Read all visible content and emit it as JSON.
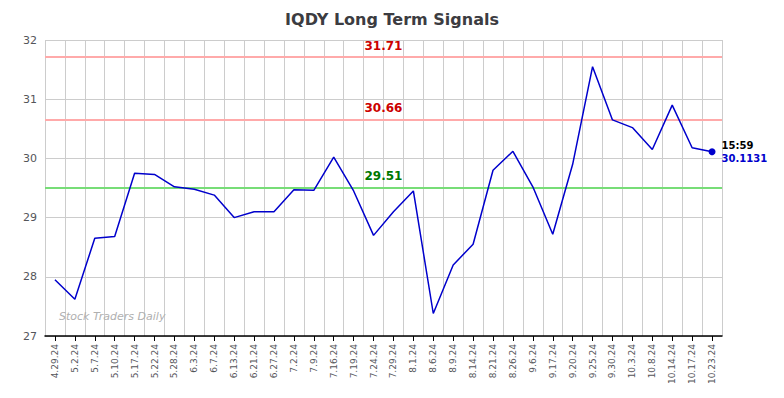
{
  "chart_data": {
    "type": "line",
    "title": "IQDY Long Term Signals",
    "categories": [
      "4.29.24",
      "5.2.24",
      "5.7.24",
      "5.10.24",
      "5.17.24",
      "5.22.24",
      "5.28.24",
      "6.3.24",
      "6.7.24",
      "6.13.24",
      "6.21.24",
      "6.27.24",
      "7.2.24",
      "7.9.24",
      "7.16.24",
      "7.19.24",
      "7.24.24",
      "7.29.24",
      "8.1.24",
      "8.6.24",
      "8.9.24",
      "8.14.24",
      "8.21.24",
      "8.26.24",
      "9.6.24",
      "9.17.24",
      "9.20.24",
      "9.25.24",
      "9.30.24",
      "10.3.24",
      "10.8.24",
      "10.14.24",
      "10.17.24",
      "10.23.24"
    ],
    "values": [
      27.95,
      27.62,
      28.65,
      28.68,
      29.75,
      29.73,
      29.52,
      29.48,
      29.38,
      29.0,
      29.1,
      29.1,
      29.47,
      29.46,
      30.02,
      29.45,
      28.7,
      29.1,
      29.45,
      27.38,
      28.2,
      28.55,
      29.8,
      30.12,
      29.52,
      28.72,
      29.9,
      31.55,
      30.65,
      30.52,
      30.15,
      30.9,
      30.18,
      30.1131
    ],
    "color": "#0000cc",
    "ylim": [
      27,
      32
    ],
    "yticks": [
      27,
      28,
      29,
      30,
      31,
      32
    ],
    "grid": true,
    "hlines": [
      {
        "value": 31.71,
        "color": "#ffaaaa",
        "label_color": "#cc0000"
      },
      {
        "value": 30.66,
        "color": "#ffaaaa",
        "label_color": "#cc0000"
      },
      {
        "value": 29.51,
        "color": "#77dd77",
        "label_color": "#007700"
      }
    ],
    "last_point": {
      "label": "15:59",
      "value": 30.1131
    },
    "watermark": "Stock Traders Daily"
  }
}
